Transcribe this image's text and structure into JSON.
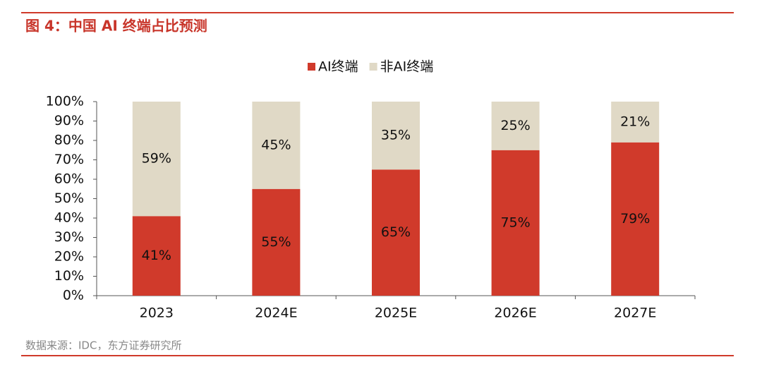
{
  "chart_data": {
    "type": "stacked-bar",
    "title": "图 4：中国 AI 终端占比预测",
    "source": "数据来源：IDC，东方证券研究所",
    "categories": [
      "2023",
      "2024E",
      "2025E",
      "2026E",
      "2027E"
    ],
    "series": [
      {
        "name": "AI终端",
        "color": "#d03a2b",
        "values": [
          41,
          55,
          65,
          75,
          79
        ],
        "value_labels": [
          "41%",
          "55%",
          "65%",
          "75%",
          "79%"
        ]
      },
      {
        "name": "非AI终端",
        "color": "#e0d9c6",
        "values": [
          59,
          45,
          35,
          25,
          21
        ],
        "value_labels": [
          "59%",
          "45%",
          "35%",
          "25%",
          "21%"
        ]
      }
    ],
    "ylim": [
      0,
      100
    ],
    "yticks": [
      {
        "value": 0,
        "label": "0%"
      },
      {
        "value": 10,
        "label": "10%"
      },
      {
        "value": 20,
        "label": "20%"
      },
      {
        "value": 30,
        "label": "30%"
      },
      {
        "value": 40,
        "label": "40%"
      },
      {
        "value": 50,
        "label": "50%"
      },
      {
        "value": 60,
        "label": "60%"
      },
      {
        "value": 70,
        "label": "70%"
      },
      {
        "value": 80,
        "label": "80%"
      },
      {
        "value": 90,
        "label": "90%"
      },
      {
        "value": 100,
        "label": "100%"
      }
    ],
    "legend": "top"
  }
}
